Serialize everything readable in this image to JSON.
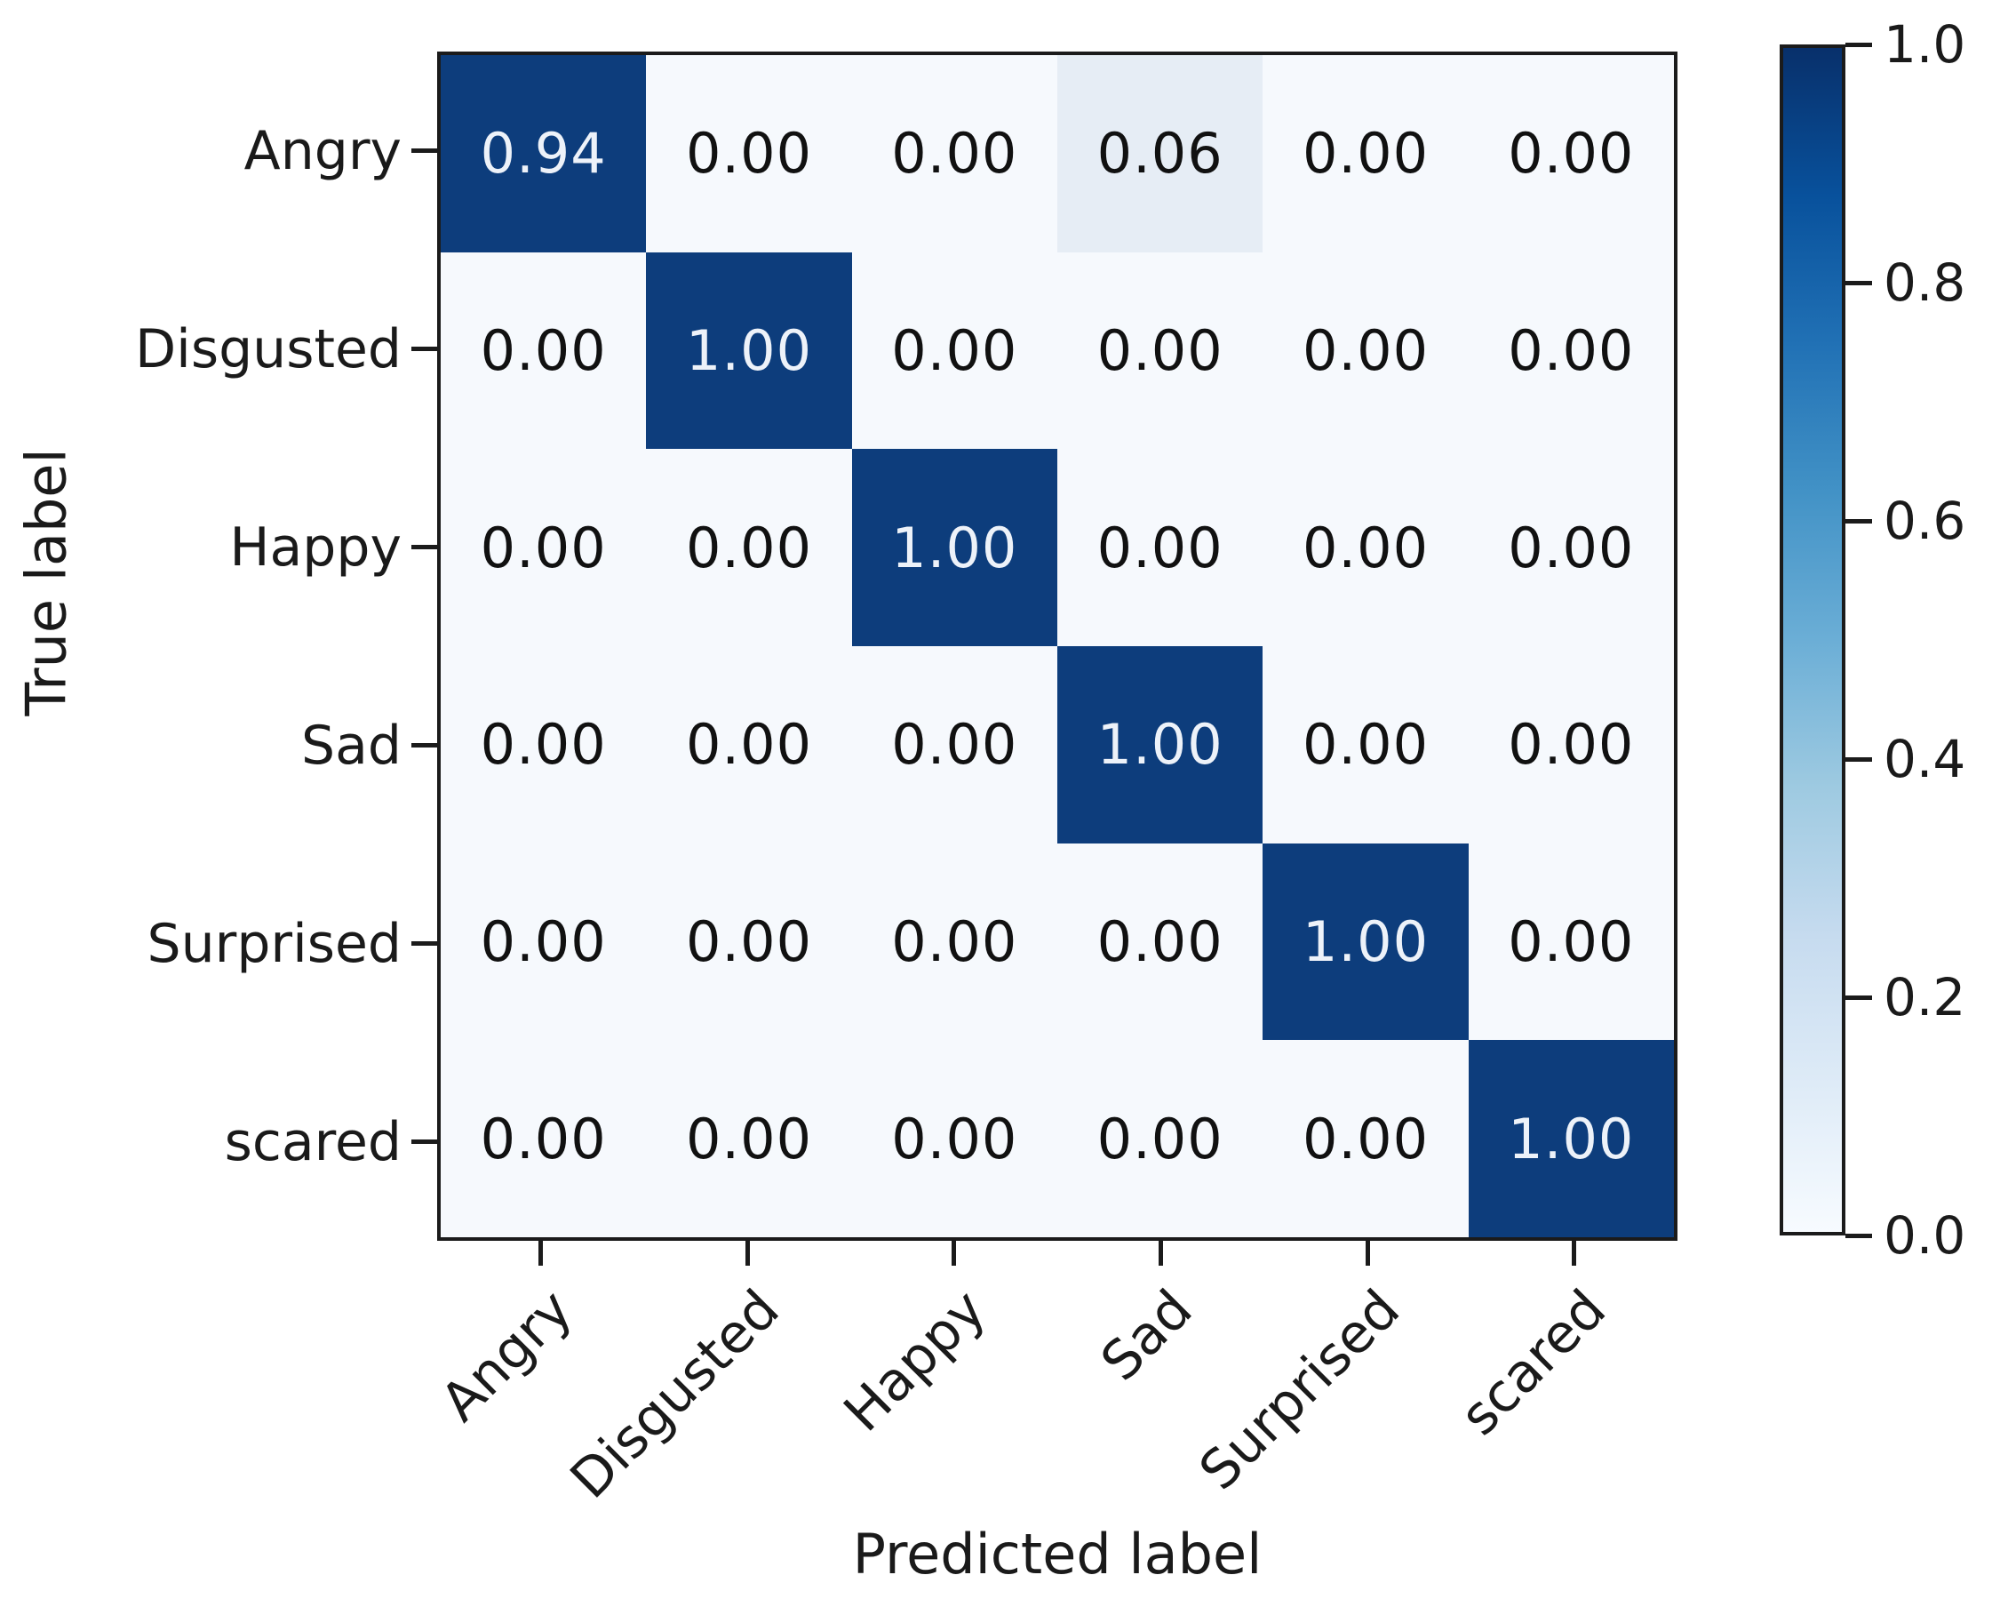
{
  "chart_data": {
    "type": "heatmap",
    "title": "",
    "xlabel": "Predicted label",
    "ylabel": "True label",
    "x_categories": [
      "Angry",
      "Disgusted",
      "Happy",
      "Sad",
      "Surprised",
      "scared"
    ],
    "y_categories": [
      "Angry",
      "Disgusted",
      "Happy",
      "Sad",
      "Surprised",
      "scared"
    ],
    "matrix": [
      [
        0.94,
        0.0,
        0.0,
        0.06,
        0.0,
        0.0
      ],
      [
        0.0,
        1.0,
        0.0,
        0.0,
        0.0,
        0.0
      ],
      [
        0.0,
        0.0,
        1.0,
        0.0,
        0.0,
        0.0
      ],
      [
        0.0,
        0.0,
        0.0,
        1.0,
        0.0,
        0.0
      ],
      [
        0.0,
        0.0,
        0.0,
        0.0,
        1.0,
        0.0
      ],
      [
        0.0,
        0.0,
        0.0,
        0.0,
        0.0,
        1.0
      ]
    ],
    "value_decimals": 2,
    "grid": false,
    "colorbar": {
      "position": "right",
      "min": 0.0,
      "max": 1.0,
      "tick_labels": [
        "1.0",
        "0.8",
        "0.6",
        "0.4",
        "0.2",
        "0.0"
      ],
      "colormap": "Blues",
      "gradient_stops": [
        "#08306b",
        "#08519c",
        "#2171b5",
        "#4292c6",
        "#6baed6",
        "#9ecae1",
        "#c6dbef",
        "#deebf7",
        "#f7fbff"
      ]
    },
    "colors": {
      "cell_high": "#0d3d7c",
      "cell_faint": "#e6edf5",
      "cell_low": "#f6f9fd",
      "text_on_dark": "#edf2f9",
      "text_on_light": "#111111",
      "axis": "#1b1b1b"
    }
  }
}
